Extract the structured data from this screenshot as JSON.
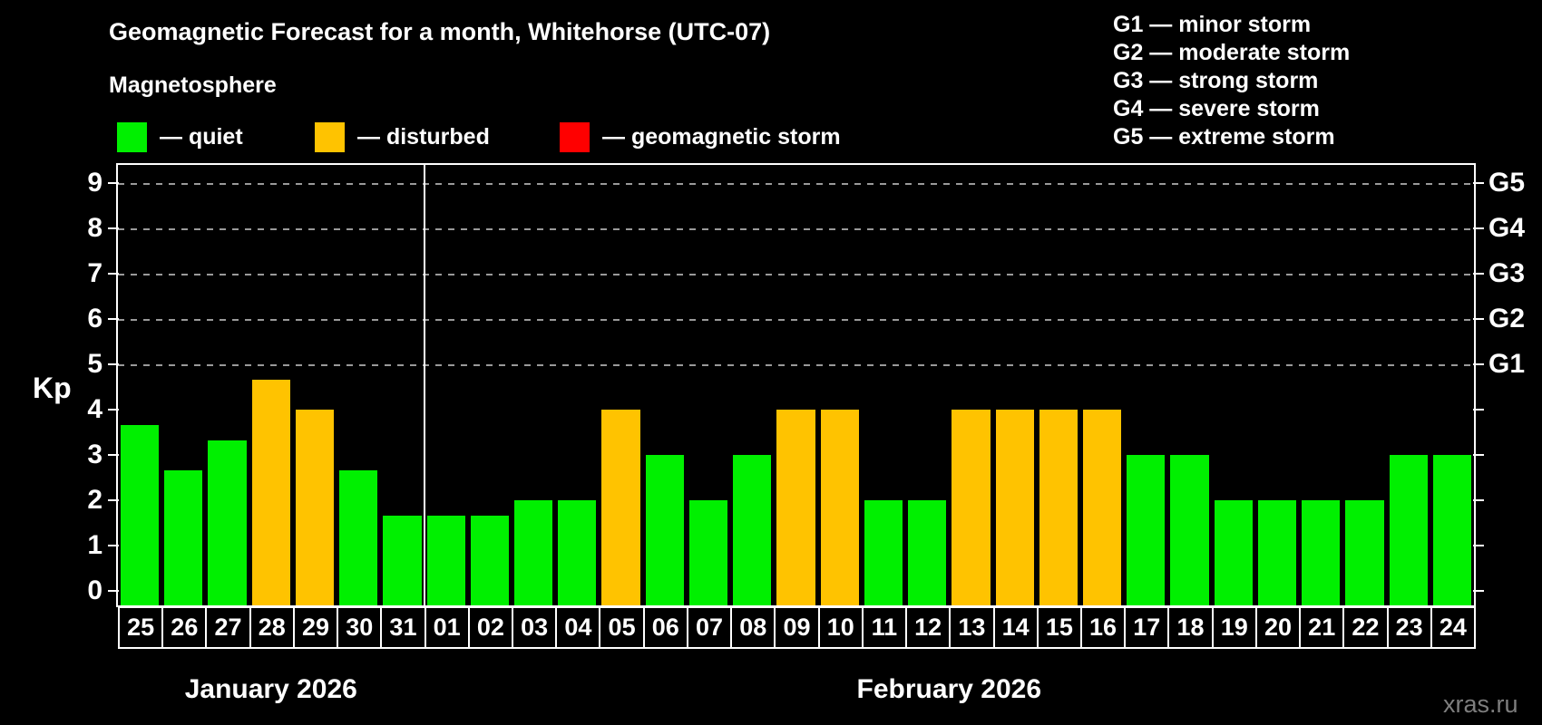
{
  "title": "Geomagnetic Forecast for a month, Whitehorse (UTC-07)",
  "subtitle": "Magnetosphere",
  "legend": {
    "quiet_label": "— quiet",
    "disturbed_label": "— disturbed",
    "storm_label": "— geomagnetic storm"
  },
  "storm_scale": [
    "G1 — minor storm",
    "G2 — moderate storm",
    "G3 — strong storm",
    "G4 — severe storm",
    "G5 — extreme storm"
  ],
  "axis": {
    "kp_label": "Kp",
    "kp_ticks": [
      "0",
      "1",
      "2",
      "3",
      "4",
      "5",
      "6",
      "7",
      "8",
      "9"
    ],
    "g_labels": [
      {
        "label": "G1",
        "kp": 5
      },
      {
        "label": "G2",
        "kp": 6
      },
      {
        "label": "G3",
        "kp": 7
      },
      {
        "label": "G4",
        "kp": 8
      },
      {
        "label": "G5",
        "kp": 9
      }
    ]
  },
  "months": [
    {
      "label": "January 2026",
      "days": 7
    },
    {
      "label": "February 2026",
      "days": 24
    }
  ],
  "watermark": "xras.ru",
  "colors": {
    "quiet": "#00F000",
    "disturbed": "#FFC300",
    "storm": "#FF0000",
    "grid": "#9A9A9A",
    "axis": "#FFFFFF",
    "background": "#000000"
  },
  "chart_data": {
    "type": "bar",
    "title": "Geomagnetic Forecast for a month, Whitehorse (UTC-07)",
    "xlabel": "",
    "ylabel": "Kp",
    "ylim": [
      0,
      9.4
    ],
    "grid": "dashed horizontal lines at Kp 5,6,7,8,9 (G1–G5 levels) only",
    "legend_position": "top",
    "categories": [
      "25",
      "26",
      "27",
      "28",
      "29",
      "30",
      "31",
      "01",
      "02",
      "03",
      "04",
      "05",
      "06",
      "07",
      "08",
      "09",
      "10",
      "11",
      "12",
      "13",
      "14",
      "15",
      "16",
      "17",
      "18",
      "19",
      "20",
      "21",
      "22",
      "23",
      "24"
    ],
    "values": [
      3.67,
      2.67,
      3.33,
      4.67,
      4,
      2.67,
      1.67,
      1.67,
      1.67,
      2,
      2,
      4,
      3,
      2,
      3,
      4,
      4,
      2,
      2,
      4,
      4,
      4,
      4,
      3,
      3,
      2,
      2,
      2,
      2,
      3,
      3
    ],
    "statuses": [
      "quiet",
      "quiet",
      "quiet",
      "disturbed",
      "disturbed",
      "quiet",
      "quiet",
      "quiet",
      "quiet",
      "quiet",
      "quiet",
      "disturbed",
      "quiet",
      "quiet",
      "quiet",
      "disturbed",
      "disturbed",
      "quiet",
      "quiet",
      "disturbed",
      "disturbed",
      "disturbed",
      "disturbed",
      "quiet",
      "quiet",
      "quiet",
      "quiet",
      "quiet",
      "quiet",
      "quiet",
      "quiet"
    ]
  }
}
